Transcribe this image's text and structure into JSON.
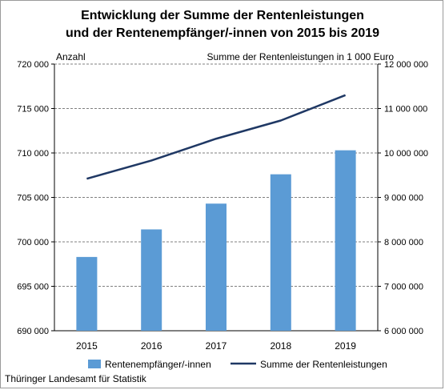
{
  "title_line1": "Entwicklung der Summe der Rentenleistungen",
  "title_line2": "und der Rentenempfänger/-innen von 2015 bis 2019",
  "source": "Thüringer Landesamt für Statistik",
  "colors": {
    "bar": "#5b9bd5",
    "line": "#1f3864",
    "grid": "#555555"
  },
  "chart_data": {
    "type": "bar+line",
    "title": "Entwicklung der Summe der Rentenleistungen und der Rentenempfänger/-innen von 2015 bis 2019",
    "categories": [
      "2015",
      "2016",
      "2017",
      "2018",
      "2019"
    ],
    "y_left": {
      "label": "Anzahl",
      "range": [
        690000,
        720000
      ],
      "ticks": [
        "690 000",
        "695 000",
        "700 000",
        "705 000",
        "710 000",
        "715 000",
        "720 000"
      ]
    },
    "y_right": {
      "label": "Summe der Rentenleistungen in 1 000 Euro",
      "range": [
        6000000,
        12000000
      ],
      "ticks": [
        "6 000 000",
        "7 000 000",
        "8 000 000",
        "9 000 000",
        "10 000 000",
        "11 000 000",
        "12 000 000"
      ]
    },
    "series": [
      {
        "name": "Rentenempfänger/-innen",
        "type": "bar",
        "axis": "left",
        "values": [
          698300,
          701400,
          704300,
          707600,
          710300
        ]
      },
      {
        "name": "Summe der Rentenleistungen",
        "type": "line",
        "axis": "right",
        "values": [
          9420000,
          9830000,
          10320000,
          10730000,
          11300000
        ]
      }
    ],
    "grid": true,
    "legend_position": "bottom"
  }
}
